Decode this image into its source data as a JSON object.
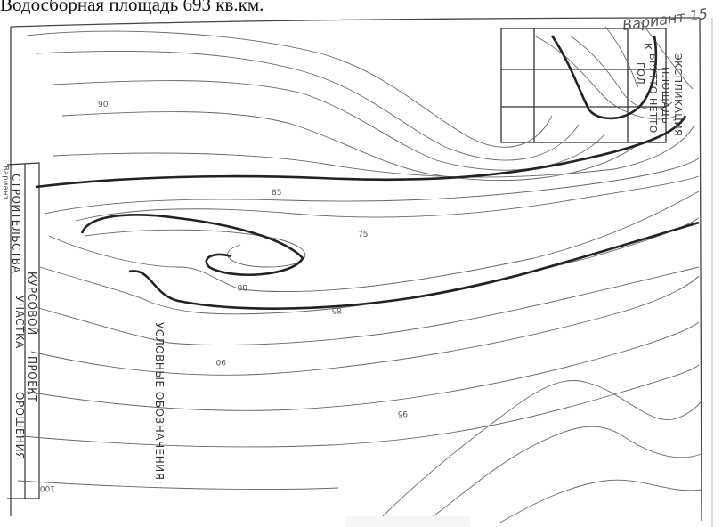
{
  "header": {
    "text": "Водосборная площадь 693 кв.км."
  },
  "variant": {
    "text": "Вариант 15"
  },
  "title_block": {
    "line1": "СТРОИТЕЛЬСТВА",
    "line2": "КУРСОВОЙ",
    "line3": "ПРОЕКТ",
    "line4": "УЧАСТКА",
    "line5": "ОРОШЕНИЯ",
    "corner": "Вариант"
  },
  "legend": {
    "title": "УСЛОВНЫЕ ОБОЗНАЧЕНИЯ:"
  },
  "explication": {
    "line1": "ЭКСПЛИКАЦИЯ",
    "line2": "ПЛОЩАДЬ",
    "line3": "БРУТТО НЕТТО",
    "line4": "ГОЛ.",
    "line5": "К"
  },
  "contour_labels": {
    "c90_top": "90",
    "c85_upper": "85",
    "c75": "75",
    "c80": "80",
    "c85_lower": "85",
    "c90_mid": "90",
    "c95": "95",
    "c100": "100"
  }
}
